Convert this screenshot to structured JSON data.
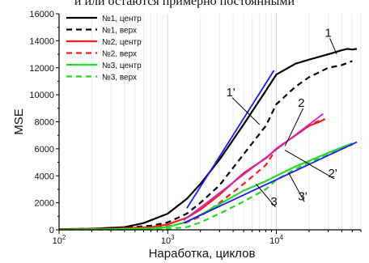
{
  "header_fragment": "и или остаются примерно постоянными",
  "chart_data": {
    "type": "line",
    "xscale": "log",
    "xlim": [
      100,
      60000
    ],
    "ylim": [
      0,
      16000
    ],
    "xlabel": "Наработка, циклов",
    "ylabel": "MSE",
    "x_ticks": [
      {
        "value": 100,
        "base": "10",
        "exp": "2"
      },
      {
        "value": 1000,
        "base": "10",
        "exp": "3"
      },
      {
        "value": 10000,
        "base": "10",
        "exp": "4"
      }
    ],
    "y_ticks": [
      0,
      2000,
      4000,
      6000,
      8000,
      10000,
      12000,
      14000,
      16000
    ],
    "y_tick_labels": [
      "0",
      "2000",
      "4000",
      "6000",
      "8000",
      "10000",
      "12000",
      "14000",
      "16000"
    ],
    "grid": "vertical minor",
    "legend_position": "top-left",
    "colors": {
      "s1": "#000000",
      "s2": "#ff1a1a",
      "s3": "#22dd22",
      "fit": "#1a1aff",
      "fit_s2": "#cc22cc"
    },
    "series": [
      {
        "name": "№1, центр",
        "style": "solid",
        "color": "#000000",
        "points": [
          [
            100,
            50
          ],
          [
            200,
            80
          ],
          [
            400,
            200
          ],
          [
            600,
            500
          ],
          [
            1000,
            1200
          ],
          [
            1500,
            2300
          ],
          [
            2000,
            3400
          ],
          [
            3000,
            5200
          ],
          [
            5000,
            7800
          ],
          [
            8000,
            10300
          ],
          [
            10000,
            11500
          ],
          [
            15000,
            12300
          ],
          [
            20000,
            12600
          ],
          [
            30000,
            13000
          ],
          [
            40000,
            13300
          ],
          [
            45000,
            13400
          ],
          [
            50000,
            13350
          ],
          [
            55000,
            13400
          ]
        ]
      },
      {
        "name": "№1, верх",
        "style": "dashed",
        "color": "#000000",
        "points": [
          [
            100,
            40
          ],
          [
            300,
            100
          ],
          [
            700,
            300
          ],
          [
            1000,
            550
          ],
          [
            1500,
            1200
          ],
          [
            2000,
            2000
          ],
          [
            3000,
            3300
          ],
          [
            5000,
            5600
          ],
          [
            8000,
            7700
          ],
          [
            10000,
            9300
          ],
          [
            15000,
            10600
          ],
          [
            20000,
            11300
          ],
          [
            30000,
            12000
          ],
          [
            40000,
            12200
          ],
          [
            50000,
            12500
          ]
        ]
      },
      {
        "name": "№2, центр",
        "style": "solid",
        "color": "#ff1a1a",
        "points": [
          [
            100,
            30
          ],
          [
            300,
            80
          ],
          [
            700,
            200
          ],
          [
            1000,
            400
          ],
          [
            1500,
            900
          ],
          [
            2000,
            1500
          ],
          [
            3000,
            2600
          ],
          [
            5000,
            4200
          ],
          [
            8000,
            5300
          ],
          [
            10000,
            6000
          ],
          [
            15000,
            7000
          ],
          [
            20000,
            7700
          ],
          [
            25000,
            8000
          ],
          [
            28000,
            8200
          ]
        ]
      },
      {
        "name": "№2, верх",
        "style": "dashed",
        "color": "#ff1a1a",
        "points": [
          [
            100,
            20
          ],
          [
            400,
            60
          ],
          [
            1000,
            250
          ],
          [
            1500,
            550
          ],
          [
            2000,
            1000
          ],
          [
            3000,
            2000
          ],
          [
            5000,
            3400
          ],
          [
            8000,
            4800
          ],
          [
            10000,
            6000
          ],
          [
            15000,
            7000
          ],
          [
            20000,
            7700
          ],
          [
            25000,
            8100
          ],
          [
            28000,
            8200
          ]
        ]
      },
      {
        "name": "№3, центр",
        "style": "solid",
        "color": "#22dd22",
        "points": [
          [
            100,
            20
          ],
          [
            300,
            40
          ],
          [
            700,
            100
          ],
          [
            1000,
            200
          ],
          [
            1500,
            600
          ],
          [
            2000,
            1100
          ],
          [
            3000,
            1900
          ],
          [
            5000,
            2900
          ],
          [
            8000,
            3600
          ],
          [
            10000,
            4000
          ],
          [
            15000,
            4700
          ],
          [
            20000,
            5100
          ],
          [
            30000,
            5700
          ],
          [
            40000,
            6100
          ],
          [
            50000,
            6400
          ]
        ]
      },
      {
        "name": "№3, верх",
        "style": "dashed",
        "color": "#22dd22",
        "points": [
          [
            100,
            10
          ],
          [
            400,
            20
          ],
          [
            1000,
            80
          ],
          [
            1500,
            200
          ],
          [
            2000,
            550
          ],
          [
            3000,
            1200
          ],
          [
            5000,
            2100
          ],
          [
            8000,
            3000
          ],
          [
            10000,
            3700
          ],
          [
            15000,
            4500
          ],
          [
            20000,
            5000
          ],
          [
            30000,
            5600
          ],
          [
            40000,
            6000
          ],
          [
            50000,
            6300
          ]
        ]
      }
    ],
    "fit_lines": [
      {
        "label": "1'",
        "color": "#1a1aff",
        "from": [
          1500,
          1600
        ],
        "to": [
          9500,
          11800
        ]
      },
      {
        "label": "2'",
        "color": "#cc22cc",
        "from": [
          1400,
          700
        ],
        "to": [
          27000,
          8600
        ]
      },
      {
        "label": "3'",
        "color": "#1a1aff",
        "from": [
          1400,
          500
        ],
        "to": [
          55000,
          6500
        ]
      }
    ],
    "annotations": [
      {
        "text": "1",
        "x": 30000,
        "y": 14300,
        "target": [
          36000,
          13000
        ]
      },
      {
        "text": "1'",
        "x": 3800,
        "y": 9900,
        "target": [
          7000,
          7800
        ]
      },
      {
        "text": "2",
        "x": 17000,
        "y": 9100,
        "target": [
          12000,
          6200
        ]
      },
      {
        "text": "2'",
        "x": 33000,
        "y": 3900,
        "target": [
          12000,
          5900
        ]
      },
      {
        "text": "3",
        "x": 9500,
        "y": 1800,
        "target": [
          6500,
          3400
        ]
      },
      {
        "text": "3'",
        "x": 17500,
        "y": 2200,
        "target": [
          13000,
          4200
        ]
      }
    ]
  }
}
